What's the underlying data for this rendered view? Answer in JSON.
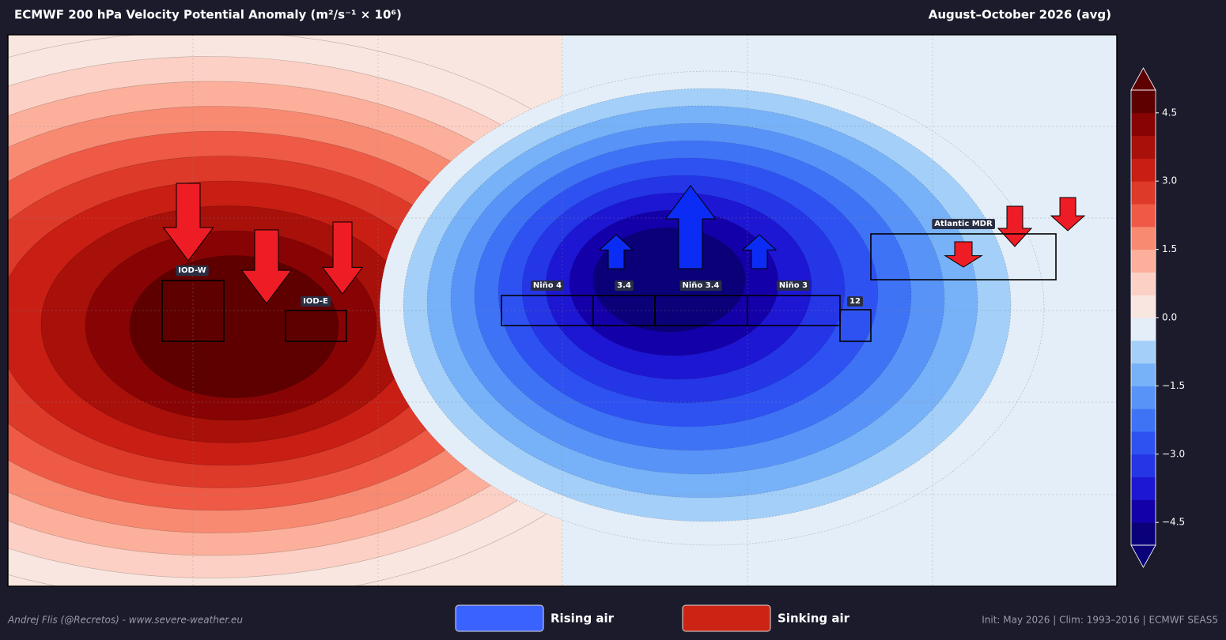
{
  "header": {
    "title": "ECMWF 200 hPa Velocity Potential Anomaly  (m²/s⁻¹ × 10⁶)",
    "period": "August–October 2026  (avg)"
  },
  "regions": [
    {
      "label": "IOD-W"
    },
    {
      "label": "IOD-E"
    },
    {
      "label": "Niño 4"
    },
    {
      "label": "3.4"
    },
    {
      "label": "Niño 3.4"
    },
    {
      "label": "Niño 3"
    },
    {
      "label": "12"
    },
    {
      "label": "Atlantic MDR"
    }
  ],
  "colorbar": {
    "lim": [
      -5.0,
      5.0
    ],
    "ticks": [
      4.5,
      {
        "value": 3.0,
        "label": "3.0"
      },
      1.5,
      {
        "value": 0.0,
        "label": "0.0"
      },
      {
        "value": -1.5,
        "label": "−1.5"
      },
      {
        "value": -3.0,
        "label": "−3.0"
      },
      {
        "value": -4.5,
        "label": "−4.5"
      }
    ],
    "colors": [
      "#0a0078",
      "#1400a8",
      "#1d16d2",
      "#2436e6",
      "#2e52f2",
      "#3f73f6",
      "#5894f8",
      "#77b1f8",
      "#a3cff8",
      "#e4eef8",
      "#f9e6e0",
      "#fcd0c4",
      "#fcaf9b",
      "#f88a72",
      "#ee5a45",
      "#dd3a2a",
      "#c81e14",
      "#a8100a",
      "#880404",
      "#5f0000"
    ]
  },
  "legend": [
    {
      "label": "Rising air",
      "color": "#3a62ff"
    },
    {
      "label": "Sinking air",
      "color": "#cc2414"
    }
  ],
  "footer": {
    "credit": "Andrej Flis (@Recretos) - www.severe-weather.eu",
    "info": "Init: May 2026  |  Clim: 1993–2016  |  ECMWF SEAS5"
  }
}
